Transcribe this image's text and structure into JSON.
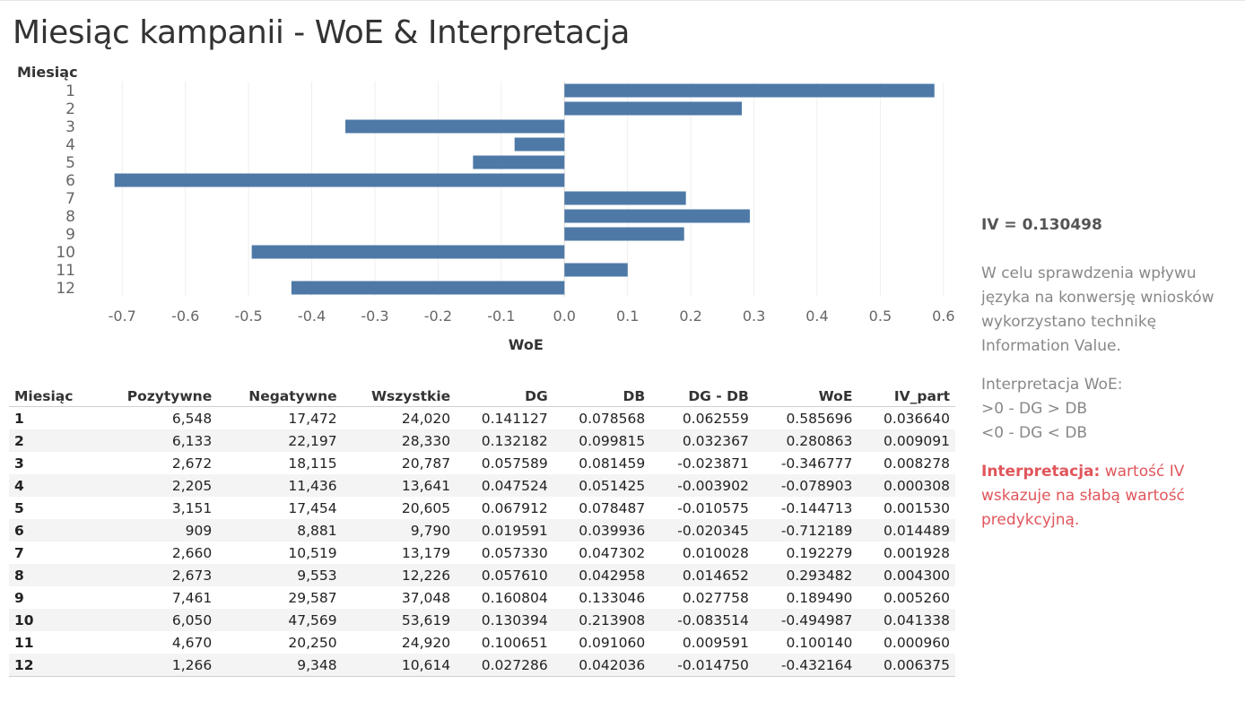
{
  "title": "Miesiąc kampanii - WoE & Interpretacja",
  "colors": {
    "bar": "#4e79a7",
    "accent_red": "#e0565b"
  },
  "chart_data": {
    "type": "bar",
    "orientation": "horizontal",
    "ylabel": "Miesiąc",
    "xlabel": "WoE",
    "categories": [
      "1",
      "2",
      "3",
      "4",
      "5",
      "6",
      "7",
      "8",
      "9",
      "10",
      "11",
      "12"
    ],
    "values": [
      0.585696,
      0.280863,
      -0.346777,
      -0.078903,
      -0.144713,
      -0.712189,
      0.192279,
      0.293482,
      0.18949,
      -0.494987,
      0.10014,
      -0.432164
    ],
    "xlim": [
      -0.76,
      0.64
    ],
    "xticks": [
      -0.7,
      -0.6,
      -0.5,
      -0.4,
      -0.3,
      -0.2,
      -0.1,
      0.0,
      0.1,
      0.2,
      0.3,
      0.4,
      0.5,
      0.6
    ],
    "xtick_labels": [
      "-0.7",
      "-0.6",
      "-0.5",
      "-0.4",
      "-0.3",
      "-0.2",
      "-0.1",
      "0.0",
      "0.1",
      "0.2",
      "0.3",
      "0.4",
      "0.5",
      "0.6"
    ],
    "grid": true
  },
  "table": {
    "headers": [
      "Miesiąc",
      "Pozytywne",
      "Negatywne",
      "Wszystkie",
      "DG",
      "DB",
      "DG - DB",
      "WoE",
      "IV_part"
    ],
    "rows": [
      [
        "1",
        "6,548",
        "17,472",
        "24,020",
        "0.141127",
        "0.078568",
        "0.062559",
        "0.585696",
        "0.036640"
      ],
      [
        "2",
        "6,133",
        "22,197",
        "28,330",
        "0.132182",
        "0.099815",
        "0.032367",
        "0.280863",
        "0.009091"
      ],
      [
        "3",
        "2,672",
        "18,115",
        "20,787",
        "0.057589",
        "0.081459",
        "-0.023871",
        "-0.346777",
        "0.008278"
      ],
      [
        "4",
        "2,205",
        "11,436",
        "13,641",
        "0.047524",
        "0.051425",
        "-0.003902",
        "-0.078903",
        "0.000308"
      ],
      [
        "5",
        "3,151",
        "17,454",
        "20,605",
        "0.067912",
        "0.078487",
        "-0.010575",
        "-0.144713",
        "0.001530"
      ],
      [
        "6",
        "909",
        "8,881",
        "9,790",
        "0.019591",
        "0.039936",
        "-0.020345",
        "-0.712189",
        "0.014489"
      ],
      [
        "7",
        "2,660",
        "10,519",
        "13,179",
        "0.057330",
        "0.047302",
        "0.010028",
        "0.192279",
        "0.001928"
      ],
      [
        "8",
        "2,673",
        "9,553",
        "12,226",
        "0.057610",
        "0.042958",
        "0.014652",
        "0.293482",
        "0.004300"
      ],
      [
        "9",
        "7,461",
        "29,587",
        "37,048",
        "0.160804",
        "0.133046",
        "0.027758",
        "0.189490",
        "0.005260"
      ],
      [
        "10",
        "6,050",
        "47,569",
        "53,619",
        "0.130394",
        "0.213908",
        "-0.083514",
        "-0.494987",
        "0.041338"
      ],
      [
        "11",
        "4,670",
        "20,250",
        "24,920",
        "0.100651",
        "0.091060",
        "0.009591",
        "0.100140",
        "0.000960"
      ],
      [
        "12",
        "1,266",
        "9,348",
        "10,614",
        "0.027286",
        "0.042036",
        "-0.014750",
        "-0.432164",
        "0.006375"
      ]
    ]
  },
  "side": {
    "iv": "IV = 0.130498",
    "description": "W celu sprawdzenia wpływu języka na konwersję wniosków wykorzystano technikę Information Value.",
    "woe_title": "Interpretacja WoE:",
    "woe_pos": ">0 - DG > DB",
    "woe_neg": "<0 - DG < DB",
    "interp_label": "Interpretacja:",
    "interp_text": " wartość IV wskazuje na słabą wartość predykcyjną."
  }
}
